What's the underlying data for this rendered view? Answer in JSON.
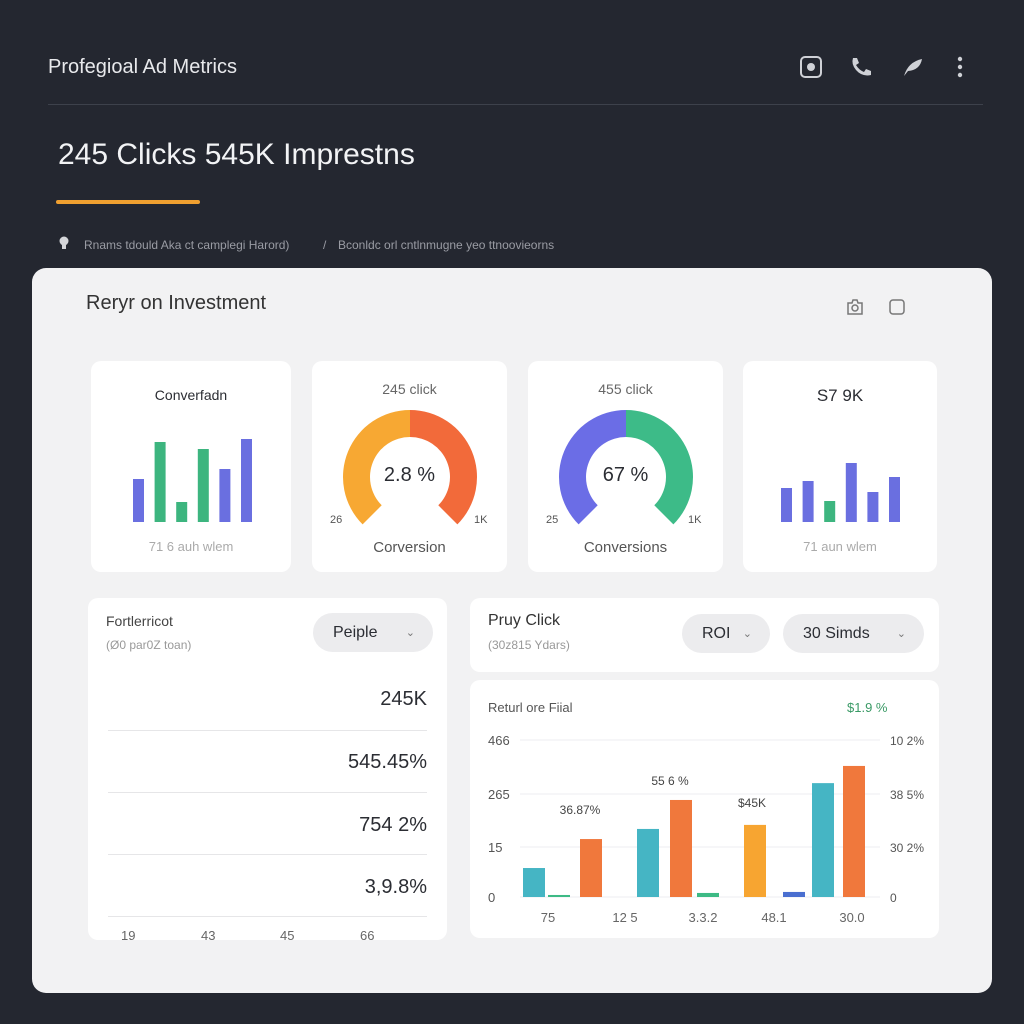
{
  "header": {
    "title": "Profegioal Ad Metrics",
    "icons": [
      "instagram-icon",
      "phone-icon",
      "send-icon",
      "more-vert-icon"
    ]
  },
  "headline": "245 Clicks 545K Imprestns",
  "breadcrumb": {
    "first": "Rnams tdould Aka ct camplegi Harord)",
    "separator": "/",
    "second": "Bconldc orl cntlnmugne yeo ttnoovieorns"
  },
  "panel": {
    "title": "Reryr on Investment",
    "icons": [
      "camera-icon",
      "square-icon"
    ]
  },
  "cards": [
    {
      "title": "Converfadn",
      "footer": "71 6 auh wlem",
      "bars": [
        {
          "v": 43,
          "c": "#6a6fe0"
        },
        {
          "v": 80,
          "c": "#3db57f"
        },
        {
          "v": 20,
          "c": "#3db57f"
        },
        {
          "v": 73,
          "c": "#3db57f"
        },
        {
          "v": 53,
          "c": "#6a6fe0"
        },
        {
          "v": 83,
          "c": "#6a6fe0"
        }
      ]
    },
    {
      "title": "245 click",
      "value": "2.8 %",
      "min": "26",
      "max": "1K",
      "label": "Corversion",
      "colors": [
        "#f7a833",
        "#f26a3a"
      ]
    },
    {
      "title": "455 click",
      "value": "67 %",
      "min": "25",
      "max": "1K",
      "label": "Conversions",
      "colors": [
        "#6b6de6",
        "#3dbb88"
      ]
    },
    {
      "title": "S7 9K",
      "footer": "71 aun wlem",
      "bars": [
        {
          "v": 34,
          "c": "#6a6fe0"
        },
        {
          "v": 41,
          "c": "#6a6fe0"
        },
        {
          "v": 21,
          "c": "#3db57f"
        },
        {
          "v": 59,
          "c": "#6a6fe0"
        },
        {
          "v": 30,
          "c": "#6a6fe0"
        },
        {
          "v": 45,
          "c": "#6a6fe0"
        }
      ]
    }
  ],
  "left_card": {
    "title": "Fortlerricot",
    "subtitle": "(Ø0 par0Z toan)",
    "dropdown": "Peiple",
    "values": [
      "245K",
      "545.45%",
      "754 2%",
      "3,9.8%"
    ],
    "x_labels": [
      "19",
      "43",
      "45",
      "66"
    ]
  },
  "right_header": {
    "title": "Pruy Click",
    "subtitle": "(30z815 Ydars)",
    "dropdown1": "ROI",
    "dropdown2": "30 Simds"
  },
  "chart_data": {
    "type": "bar",
    "title": "Returl ore Fiial",
    "corner_label": "$1.9 %",
    "y_ticks_left": [
      "466",
      "265",
      "15",
      "0"
    ],
    "y_ticks_right": [
      "10 2%",
      "38 5%",
      "30 2%",
      "0"
    ],
    "categories": [
      "75",
      "12 5",
      "3.3.2",
      "48.1",
      "30.0"
    ],
    "ylim": [
      0,
      466
    ],
    "bars": [
      {
        "v": 86,
        "c": "#45b5c4"
      },
      {
        "v": 6,
        "c": "#3dba85"
      },
      {
        "v": 172,
        "c": "#f0783c"
      },
      {
        "v": 202,
        "c": "#45b5c4"
      },
      {
        "v": 288,
        "c": "#f0783c"
      },
      {
        "v": 12,
        "c": "#3dba85"
      },
      {
        "v": 214,
        "c": "#f7a531"
      },
      {
        "v": 15,
        "c": "#4a6fd0"
      },
      {
        "v": 338,
        "c": "#45b5c4"
      },
      {
        "v": 389,
        "c": "#f0783c"
      }
    ],
    "annotations": [
      "36.87%",
      "55 6 %",
      "$45K"
    ],
    "grid": true
  }
}
